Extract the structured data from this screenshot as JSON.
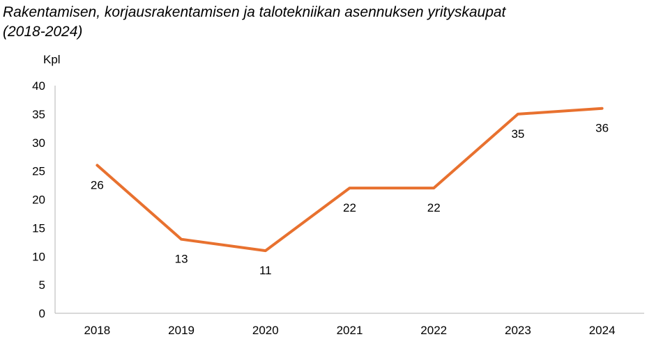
{
  "chart_data": {
    "type": "line",
    "title": "Rakentamisen, korjausrakentamisen ja talotekniikan asennuksen yrityskaupat (2018-2024)",
    "ylabel": "Kpl",
    "xlabel": "",
    "categories": [
      "2018",
      "2019",
      "2020",
      "2021",
      "2022",
      "2023",
      "2024"
    ],
    "series": [
      {
        "values": [
          26,
          13,
          11,
          22,
          22,
          35,
          36
        ],
        "color": "#E8712F"
      }
    ],
    "ylim": [
      0,
      40
    ],
    "yticks": [
      "0",
      "5",
      "10",
      "15",
      "20",
      "25",
      "30",
      "35",
      "40"
    ],
    "grid": false,
    "legend": "none",
    "data_labels": true
  }
}
